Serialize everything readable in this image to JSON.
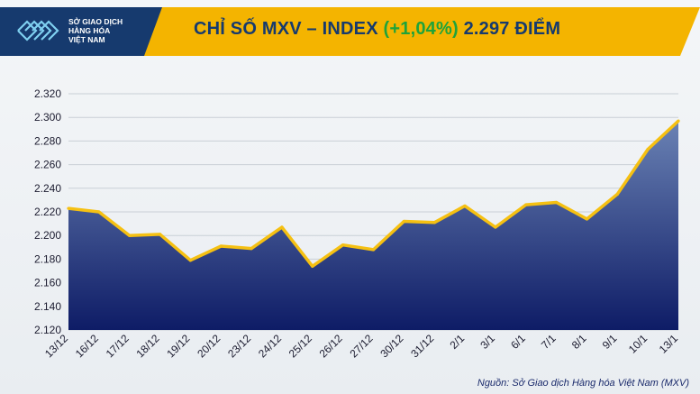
{
  "header": {
    "logo_lines": [
      "SỞ GIAO DỊCH",
      "HÀNG HÓA",
      "VIỆT NAM"
    ],
    "title_prefix": "CHỈ SỐ MXV – INDEX ",
    "title_change": "(+1,04%)",
    "title_suffix": " 2.297 ĐIỂM"
  },
  "source": "Nguồn: Sở Giao dịch Hàng hóa Việt Nam (MXV)",
  "colors": {
    "banner": "#f4b400",
    "title": "#163a6e",
    "change": "#1fa33a",
    "line": "#f5c012",
    "area_top": "#6a82b4",
    "area_bottom": "#0e1c66"
  },
  "chart_data": {
    "type": "area",
    "title": "CHỈ SỐ MXV – INDEX (+1,04%) 2.297 ĐIỂM",
    "xlabel": "",
    "ylabel": "",
    "categories": [
      "13/12",
      "16/12",
      "17/12",
      "18/12",
      "19/12",
      "20/12",
      "23/12",
      "24/12",
      "25/12",
      "26/12",
      "27/12",
      "30/12",
      "31/12",
      "2/1",
      "3/1",
      "6/1",
      "7/1",
      "8/1",
      "9/1",
      "10/1",
      "13/1"
    ],
    "values": [
      2223,
      2220,
      2200,
      2201,
      2179,
      2191,
      2189,
      2207,
      2174,
      2192,
      2188,
      2212,
      2211,
      2225,
      2207,
      2226,
      2228,
      2214,
      2235,
      2273,
      2297
    ],
    "ylim": [
      2120,
      2320
    ],
    "yticks": [
      2120,
      2140,
      2160,
      2180,
      2200,
      2220,
      2240,
      2260,
      2280,
      2300,
      2320
    ],
    "ytick_labels": [
      "2.120",
      "2.140",
      "2.160",
      "2.180",
      "2.200",
      "2.220",
      "2.240",
      "2.260",
      "2.280",
      "2.300",
      "2.320"
    ],
    "grid": true,
    "legend": "none"
  }
}
